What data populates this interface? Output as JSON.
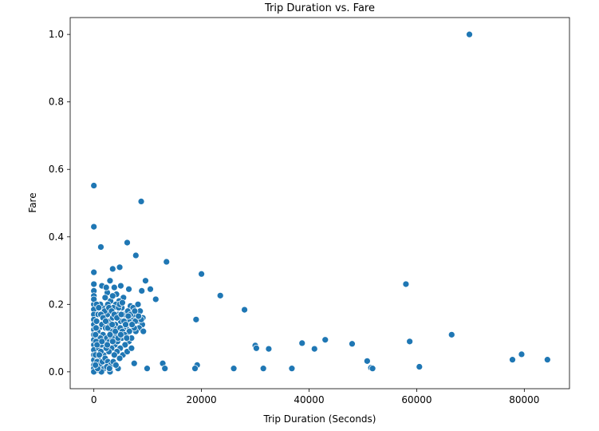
{
  "chart_data": {
    "type": "scatter",
    "title": "Trip Duration vs. Fare",
    "xlabel": "Trip Duration (Seconds)",
    "ylabel": "Fare",
    "xlim": [
      -4400,
      88400
    ],
    "ylim": [
      -0.05,
      1.05
    ],
    "xticks": [
      0,
      20000,
      40000,
      60000,
      80000
    ],
    "xtick_labels": [
      "0",
      "20000",
      "40000",
      "60000",
      "80000"
    ],
    "yticks": [
      0.0,
      0.2,
      0.4,
      0.6,
      0.8,
      1.0
    ],
    "ytick_labels": [
      "0.0",
      "0.2",
      "0.4",
      "0.6",
      "0.8",
      "1.0"
    ],
    "grid": false,
    "marker_color": "#1f77b4",
    "series": [
      {
        "points": [
          [
            69800,
            1.0
          ],
          [
            0,
            0.552
          ],
          [
            8800,
            0.505
          ],
          [
            0,
            0.43
          ],
          [
            6200,
            0.383
          ],
          [
            1300,
            0.37
          ],
          [
            7800,
            0.345
          ],
          [
            13500,
            0.326
          ],
          [
            4800,
            0.31
          ],
          [
            3500,
            0.305
          ],
          [
            0,
            0.295
          ],
          [
            20000,
            0.29
          ],
          [
            9600,
            0.27
          ],
          [
            3000,
            0.27
          ],
          [
            58000,
            0.26
          ],
          [
            0,
            0.26
          ],
          [
            10500,
            0.245
          ],
          [
            6500,
            0.245
          ],
          [
            8900,
            0.24
          ],
          [
            0,
            0.24
          ],
          [
            23500,
            0.226
          ],
          [
            11500,
            0.215
          ],
          [
            28000,
            0.184
          ],
          [
            19000,
            0.155
          ],
          [
            66500,
            0.11
          ],
          [
            43000,
            0.095
          ],
          [
            58700,
            0.09
          ],
          [
            38700,
            0.085
          ],
          [
            48000,
            0.083
          ],
          [
            30000,
            0.078
          ],
          [
            30200,
            0.07
          ],
          [
            32500,
            0.068
          ],
          [
            41000,
            0.068
          ],
          [
            50800,
            0.032
          ],
          [
            77800,
            0.036
          ],
          [
            79500,
            0.052
          ],
          [
            84300,
            0.036
          ],
          [
            60500,
            0.015
          ],
          [
            51500,
            0.012
          ],
          [
            51800,
            0.01
          ],
          [
            36800,
            0.01
          ],
          [
            31500,
            0.01
          ],
          [
            26000,
            0.01
          ],
          [
            19200,
            0.02
          ],
          [
            18800,
            0.01
          ],
          [
            12800,
            0.025
          ],
          [
            13200,
            0.01
          ],
          [
            9900,
            0.01
          ],
          [
            7500,
            0.025
          ],
          [
            4500,
            0.01
          ],
          [
            3000,
            0.0
          ],
          [
            1000,
            0.005
          ],
          [
            0,
            0.2
          ],
          [
            0,
            0.185
          ],
          [
            0,
            0.17
          ],
          [
            0,
            0.155
          ],
          [
            0,
            0.14
          ],
          [
            0,
            0.125
          ],
          [
            0,
            0.11
          ],
          [
            0,
            0.095
          ],
          [
            0,
            0.08
          ],
          [
            0,
            0.065
          ],
          [
            0,
            0.05
          ],
          [
            0,
            0.035
          ],
          [
            0,
            0.02
          ],
          [
            0,
            0.01
          ],
          [
            0,
            0.0
          ],
          [
            0,
            0.225
          ],
          [
            0,
            0.215
          ],
          [
            1500,
            0.255
          ],
          [
            2500,
            0.235
          ],
          [
            3800,
            0.25
          ],
          [
            5000,
            0.255
          ],
          [
            4200,
            0.23
          ],
          [
            5500,
            0.22
          ],
          [
            6800,
            0.195
          ],
          [
            7300,
            0.19
          ],
          [
            8200,
            0.2
          ],
          [
            8600,
            0.18
          ],
          [
            9100,
            0.16
          ],
          [
            9000,
            0.14
          ],
          [
            8400,
            0.13
          ],
          [
            7800,
            0.12
          ],
          [
            7200,
            0.16
          ],
          [
            6500,
            0.15
          ],
          [
            6000,
            0.13
          ],
          [
            5600,
            0.17
          ],
          [
            5200,
            0.19
          ],
          [
            4700,
            0.21
          ],
          [
            4100,
            0.2
          ],
          [
            3600,
            0.19
          ],
          [
            3100,
            0.21
          ],
          [
            2600,
            0.2
          ],
          [
            2100,
            0.22
          ],
          [
            1600,
            0.19
          ],
          [
            1200,
            0.2
          ],
          [
            800,
            0.17
          ],
          [
            500,
            0.15
          ],
          [
            1000,
            0.13
          ],
          [
            1500,
            0.14
          ],
          [
            2000,
            0.16
          ],
          [
            2500,
            0.17
          ],
          [
            3000,
            0.15
          ],
          [
            3500,
            0.16
          ],
          [
            4000,
            0.14
          ],
          [
            4500,
            0.17
          ],
          [
            5000,
            0.15
          ],
          [
            5500,
            0.13
          ],
          [
            6000,
            0.11
          ],
          [
            6500,
            0.09
          ],
          [
            7000,
            0.1
          ],
          [
            7500,
            0.13
          ],
          [
            8000,
            0.15
          ],
          [
            5800,
            0.08
          ],
          [
            5200,
            0.1
          ],
          [
            4700,
            0.12
          ],
          [
            4200,
            0.11
          ],
          [
            3700,
            0.13
          ],
          [
            3200,
            0.12
          ],
          [
            2700,
            0.14
          ],
          [
            2200,
            0.13
          ],
          [
            1700,
            0.11
          ],
          [
            1200,
            0.1
          ],
          [
            700,
            0.12
          ],
          [
            400,
            0.09
          ],
          [
            900,
            0.07
          ],
          [
            1400,
            0.08
          ],
          [
            1900,
            0.09
          ],
          [
            2400,
            0.1
          ],
          [
            2900,
            0.09
          ],
          [
            3400,
            0.1
          ],
          [
            3900,
            0.08
          ],
          [
            4400,
            0.09
          ],
          [
            4900,
            0.07
          ],
          [
            5400,
            0.05
          ],
          [
            4800,
            0.04
          ],
          [
            4300,
            0.06
          ],
          [
            3800,
            0.05
          ],
          [
            3300,
            0.07
          ],
          [
            2800,
            0.06
          ],
          [
            2300,
            0.07
          ],
          [
            1800,
            0.05
          ],
          [
            1300,
            0.06
          ],
          [
            800,
            0.04
          ],
          [
            300,
            0.05
          ],
          [
            600,
            0.03
          ],
          [
            1100,
            0.02
          ],
          [
            1600,
            0.03
          ],
          [
            2100,
            0.04
          ],
          [
            2600,
            0.03
          ],
          [
            3100,
            0.02
          ],
          [
            3600,
            0.03
          ],
          [
            4100,
            0.02
          ],
          [
            1900,
            0.01
          ],
          [
            2400,
            0.015
          ],
          [
            1400,
            0.0
          ],
          [
            2900,
            0.01
          ],
          [
            700,
            0.01
          ],
          [
            300,
            0.02
          ],
          [
            6200,
            0.06
          ],
          [
            7000,
            0.07
          ],
          [
            6600,
            0.12
          ],
          [
            6900,
            0.14
          ],
          [
            7400,
            0.17
          ],
          [
            7700,
            0.15
          ],
          [
            8800,
            0.155
          ],
          [
            9200,
            0.12
          ],
          [
            2000,
            0.18
          ],
          [
            2800,
            0.19
          ],
          [
            3300,
            0.18
          ],
          [
            3800,
            0.17
          ],
          [
            4300,
            0.16
          ],
          [
            4600,
            0.19
          ],
          [
            5100,
            0.17
          ],
          [
            5600,
            0.15
          ],
          [
            6300,
            0.18
          ],
          [
            6800,
            0.17
          ],
          [
            7100,
            0.14
          ],
          [
            500,
            0.2
          ],
          [
            900,
            0.19
          ],
          [
            1300,
            0.17
          ],
          [
            1700,
            0.16
          ],
          [
            2200,
            0.15
          ],
          [
            2600,
            0.13
          ],
          [
            3000,
            0.11
          ],
          [
            3400,
            0.14
          ],
          [
            4000,
            0.12
          ],
          [
            4900,
            0.13
          ],
          [
            5300,
            0.12
          ],
          [
            5700,
            0.11
          ],
          [
            6100,
            0.1
          ],
          [
            400,
            0.13
          ],
          [
            300,
            0.11
          ],
          [
            600,
            0.08
          ],
          [
            1000,
            0.05
          ],
          [
            1500,
            0.09
          ],
          [
            2500,
            0.08
          ],
          [
            3500,
            0.09
          ],
          [
            4500,
            0.1
          ],
          [
            5000,
            0.11
          ],
          [
            5900,
            0.14
          ],
          [
            6400,
            0.165
          ],
          [
            7600,
            0.18
          ],
          [
            8300,
            0.165
          ],
          [
            2300,
            0.25
          ],
          [
            3500,
            0.225
          ],
          [
            4800,
            0.2
          ],
          [
            5300,
            0.205
          ]
        ]
      }
    ]
  }
}
